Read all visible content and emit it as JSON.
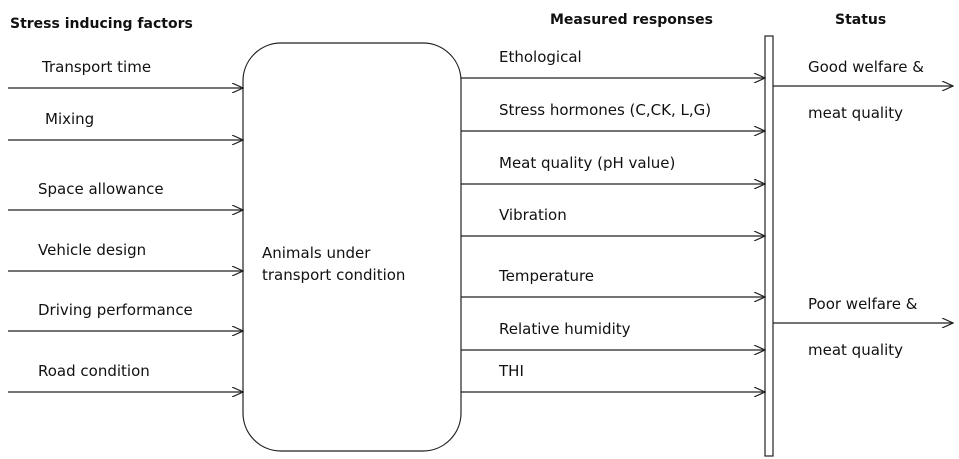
{
  "headers": {
    "factors": "Stress inducing factors",
    "responses": "Measured responses",
    "status": "Status"
  },
  "factors": [
    "Transport time",
    "Mixing",
    "Space allowance",
    "Vehicle design",
    "Driving performance",
    "Road condition"
  ],
  "center": {
    "line1": "Animals under",
    "line2": "transport condition"
  },
  "responses": [
    "Ethological",
    "Stress hormones (C,CK, L,G)",
    "Meat quality (pH value)",
    "Vibration",
    "Temperature",
    "Relative humidity",
    "THI"
  ],
  "status": [
    {
      "line1": "Good welfare &",
      "line2": "meat quality"
    },
    {
      "line1": "Poor welfare &",
      "line2": "meat quality"
    }
  ]
}
